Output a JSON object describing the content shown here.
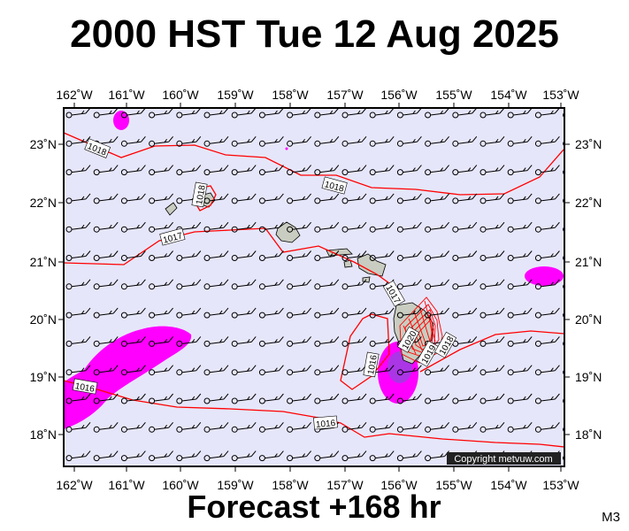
{
  "header": {
    "title": "2000 HST Tue 12 Aug 2025"
  },
  "footer": {
    "forecast": "Forecast +168 hr",
    "model_code": "M3"
  },
  "map": {
    "longitude_labels": [
      "162˚W",
      "161˚W",
      "160˚W",
      "159˚W",
      "158˚W",
      "157˚W",
      "156˚W",
      "155˚W",
      "154˚W",
      "153˚W"
    ],
    "latitude_labels": [
      "23˚N",
      "22˚N",
      "21˚N",
      "20˚N",
      "19˚N",
      "18˚N"
    ],
    "isobar_labels": [
      "1018",
      "1018",
      "1018",
      "1017",
      "1017",
      "1016",
      "1016",
      "1016",
      "1020",
      "1019",
      "1018"
    ],
    "copyright": "Copyright metvuw.com",
    "colors": {
      "ocean": "#e6e6fa",
      "land": "#c9ccc0",
      "isobar": "#ff0000",
      "precip_light": "#ff00ff",
      "precip_heavy": "#9b40e0",
      "wind_barb": "#000000"
    }
  }
}
